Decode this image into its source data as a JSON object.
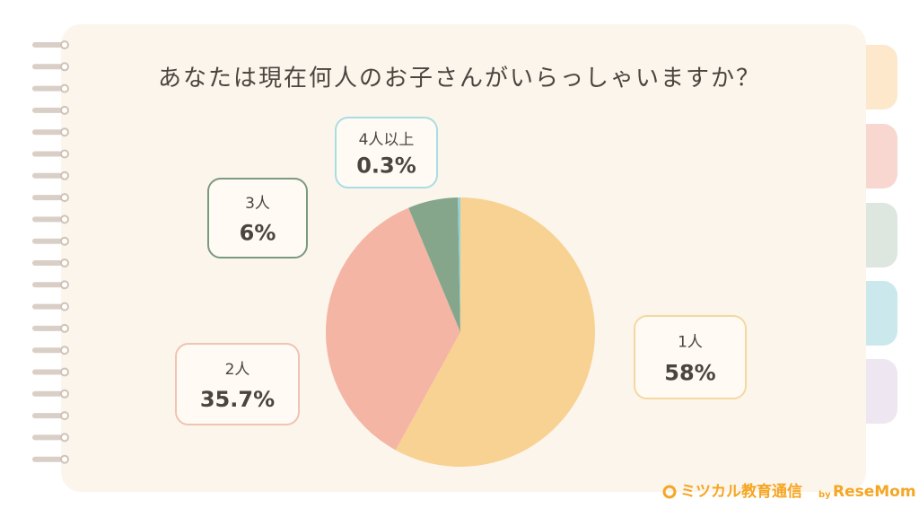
{
  "chart_data": {
    "type": "pie",
    "title": "あなたは現在何人のお子さんがいらっしゃいますか？",
    "categories": [
      "1人",
      "2人",
      "3人",
      "4人以上"
    ],
    "values": [
      58,
      35.7,
      6,
      0.3
    ],
    "value_labels": [
      "58%",
      "35.7%",
      "6%",
      "0.3%"
    ],
    "colors": [
      "#f8d293",
      "#f4b5a4",
      "#86a68c",
      "#8dd3dc"
    ],
    "label_borders": [
      "#f3d9a0",
      "#f0c3b3",
      "#7a9a80",
      "#a8dde3"
    ]
  },
  "brand": {
    "name": "ミツカル教育通信",
    "by": "by",
    "partner": "ReseMom"
  }
}
